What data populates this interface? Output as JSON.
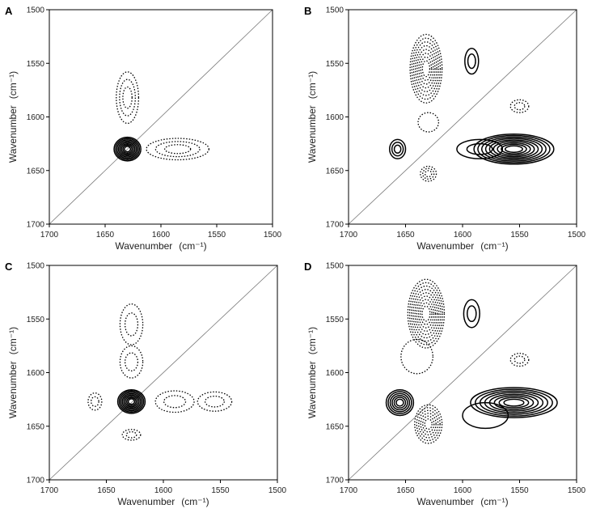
{
  "chart_data": [
    {
      "type": "contour",
      "panel": "A",
      "xlabel": "Wavenumber",
      "xunit": "(cm⁻¹)",
      "ylabel": "Wavenumber",
      "yunit": "(cm⁻¹)",
      "xlim": [
        1700,
        1500
      ],
      "ylim": [
        1500,
        1700
      ],
      "ticks": [
        1700,
        1650,
        1600,
        1550,
        1500
      ],
      "diagonal": true,
      "peaks": [
        {
          "x": 1630,
          "y": 1630,
          "rx": 12,
          "ry": 11,
          "sign": "positive",
          "levels": 8
        },
        {
          "x": 1630,
          "y": 1582,
          "rx": 10,
          "ry": 24,
          "sign": "negative",
          "levels": 3
        },
        {
          "x": 1585,
          "y": 1630,
          "rx": 28,
          "ry": 10,
          "sign": "negative",
          "levels": 3
        }
      ]
    },
    {
      "type": "contour",
      "panel": "B",
      "xlabel": "Wavenumber",
      "xunit": "(cm⁻¹)",
      "ylabel": "Wavenumber",
      "yunit": "(cm⁻¹)",
      "xlim": [
        1700,
        1500
      ],
      "ylim": [
        1500,
        1700
      ],
      "ticks": [
        1700,
        1650,
        1600,
        1550,
        1500
      ],
      "diagonal": true,
      "peaks": [
        {
          "x": 1555,
          "y": 1630,
          "rx": 35,
          "ry": 14,
          "sign": "positive",
          "levels": 9
        },
        {
          "x": 1585,
          "y": 1630,
          "rx": 20,
          "ry": 9,
          "sign": "positive",
          "levels": 2
        },
        {
          "x": 1657,
          "y": 1630,
          "rx": 7,
          "ry": 9,
          "sign": "positive",
          "levels": 3
        },
        {
          "x": 1592,
          "y": 1548,
          "rx": 6,
          "ry": 12,
          "sign": "positive",
          "levels": 2
        },
        {
          "x": 1632,
          "y": 1555,
          "rx": 14,
          "ry": 32,
          "sign": "negative",
          "levels": 8
        },
        {
          "x": 1630,
          "y": 1605,
          "rx": 9,
          "ry": 9,
          "sign": "negative",
          "levels": 1
        },
        {
          "x": 1630,
          "y": 1653,
          "rx": 7,
          "ry": 7,
          "sign": "negative",
          "levels": 3
        },
        {
          "x": 1550,
          "y": 1590,
          "rx": 8,
          "ry": 6,
          "sign": "negative",
          "levels": 2
        }
      ]
    },
    {
      "type": "contour",
      "panel": "C",
      "xlabel": "Wavenumber",
      "xunit": "(cm⁻¹)",
      "ylabel": "Wavenumber",
      "yunit": "(cm⁻¹)",
      "xlim": [
        1700,
        1500
      ],
      "ylim": [
        1500,
        1700
      ],
      "ticks": [
        1700,
        1650,
        1600,
        1550,
        1500
      ],
      "diagonal": true,
      "peaks": [
        {
          "x": 1628,
          "y": 1627,
          "rx": 12,
          "ry": 11,
          "sign": "positive",
          "levels": 8
        },
        {
          "x": 1628,
          "y": 1555,
          "rx": 10,
          "ry": 19,
          "sign": "negative",
          "levels": 2
        },
        {
          "x": 1628,
          "y": 1590,
          "rx": 10,
          "ry": 15,
          "sign": "negative",
          "levels": 2
        },
        {
          "x": 1590,
          "y": 1627,
          "rx": 17,
          "ry": 10,
          "sign": "negative",
          "levels": 2
        },
        {
          "x": 1555,
          "y": 1627,
          "rx": 15,
          "ry": 9,
          "sign": "negative",
          "levels": 2
        },
        {
          "x": 1660,
          "y": 1627,
          "rx": 6,
          "ry": 8,
          "sign": "negative",
          "levels": 2
        },
        {
          "x": 1628,
          "y": 1658,
          "rx": 8,
          "ry": 5,
          "sign": "negative",
          "levels": 2
        }
      ]
    },
    {
      "type": "contour",
      "panel": "D",
      "xlabel": "Wavenumber",
      "xunit": "(cm⁻¹)",
      "ylabel": "Wavenumber",
      "yunit": "(cm⁻¹)",
      "xlim": [
        1700,
        1500
      ],
      "ylim": [
        1500,
        1700
      ],
      "ticks": [
        1700,
        1650,
        1600,
        1550,
        1500
      ],
      "diagonal": true,
      "peaks": [
        {
          "x": 1555,
          "y": 1628,
          "rx": 38,
          "ry": 14,
          "sign": "positive",
          "levels": 8
        },
        {
          "x": 1580,
          "y": 1640,
          "rx": 20,
          "ry": 12,
          "sign": "positive",
          "levels": 1
        },
        {
          "x": 1655,
          "y": 1628,
          "rx": 12,
          "ry": 12,
          "sign": "positive",
          "levels": 6
        },
        {
          "x": 1592,
          "y": 1545,
          "rx": 7,
          "ry": 13,
          "sign": "positive",
          "levels": 2
        },
        {
          "x": 1632,
          "y": 1545,
          "rx": 16,
          "ry": 32,
          "sign": "negative",
          "levels": 9
        },
        {
          "x": 1640,
          "y": 1585,
          "rx": 14,
          "ry": 16,
          "sign": "negative",
          "levels": 1
        },
        {
          "x": 1630,
          "y": 1648,
          "rx": 12,
          "ry": 18,
          "sign": "negative",
          "levels": 6
        },
        {
          "x": 1550,
          "y": 1588,
          "rx": 8,
          "ry": 6,
          "sign": "negative",
          "levels": 2
        }
      ]
    }
  ]
}
